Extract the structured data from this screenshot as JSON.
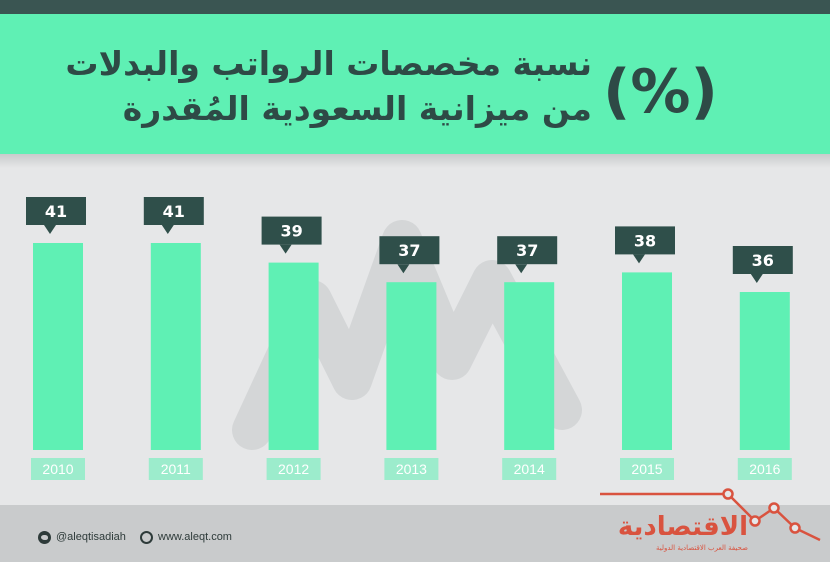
{
  "header": {
    "title_line1": "نسبة مخصصات الرواتب والبدلات",
    "title_line2": "من ميزانية السعودية المُقدرة",
    "percent_symbol": "(%)"
  },
  "chart_data": {
    "type": "bar",
    "title": "نسبة مخصصات الرواتب والبدلات من ميزانية السعودية المُقدرة (%)",
    "categories": [
      "2010",
      "2011",
      "2012",
      "2013",
      "2014",
      "2015",
      "2016"
    ],
    "values": [
      41,
      41,
      39,
      37,
      37,
      38,
      36
    ],
    "grid": false,
    "legend": "none"
  },
  "footer": {
    "twitter_handle": "@aleqtisadiah",
    "website": "www.aleqt.com",
    "logo_text": "الاقتصادية",
    "logo_subtext": "صحيفة العرب الاقتصادية الدولية"
  },
  "colors": {
    "bar": "#5ff0b4",
    "header_bg": "#5ff0b4",
    "label_box": "#2f4f4a",
    "label_text": "#ffffff",
    "title_text": "#2e4a46",
    "logo": "#d9533f",
    "background": "#e6e7e8"
  }
}
